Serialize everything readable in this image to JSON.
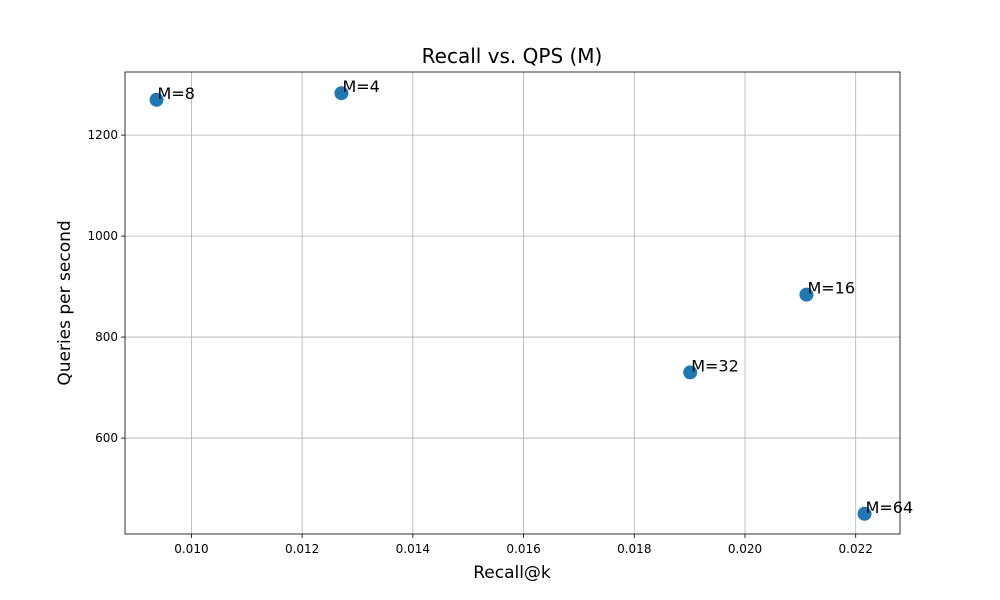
{
  "chart_data": {
    "type": "scatter",
    "title": "Recall vs. QPS (M)",
    "xlabel": "Recall@k",
    "ylabel": "Queries per second",
    "xlim": [
      0.0088,
      0.0228
    ],
    "ylim": [
      410,
      1325
    ],
    "xticks": [
      0.01,
      0.012,
      0.014,
      0.016,
      0.018,
      0.02,
      0.022
    ],
    "xtick_labels": [
      "0.010",
      "0.012",
      "0.014",
      "0.016",
      "0.018",
      "0.020",
      "0.022"
    ],
    "yticks": [
      600,
      800,
      1000,
      1200
    ],
    "ytick_labels": [
      "600",
      "800",
      "1000",
      "1200"
    ],
    "grid": true,
    "legend": "none",
    "marker_color": "#1f77b4",
    "points": [
      {
        "label": "M=8",
        "x": 0.00937,
        "y": 1270
      },
      {
        "label": "M=4",
        "x": 0.01271,
        "y": 1283
      },
      {
        "label": "M=16",
        "x": 0.02111,
        "y": 884
      },
      {
        "label": "M=32",
        "x": 0.01901,
        "y": 730
      },
      {
        "label": "M=64",
        "x": 0.02216,
        "y": 450
      }
    ]
  }
}
